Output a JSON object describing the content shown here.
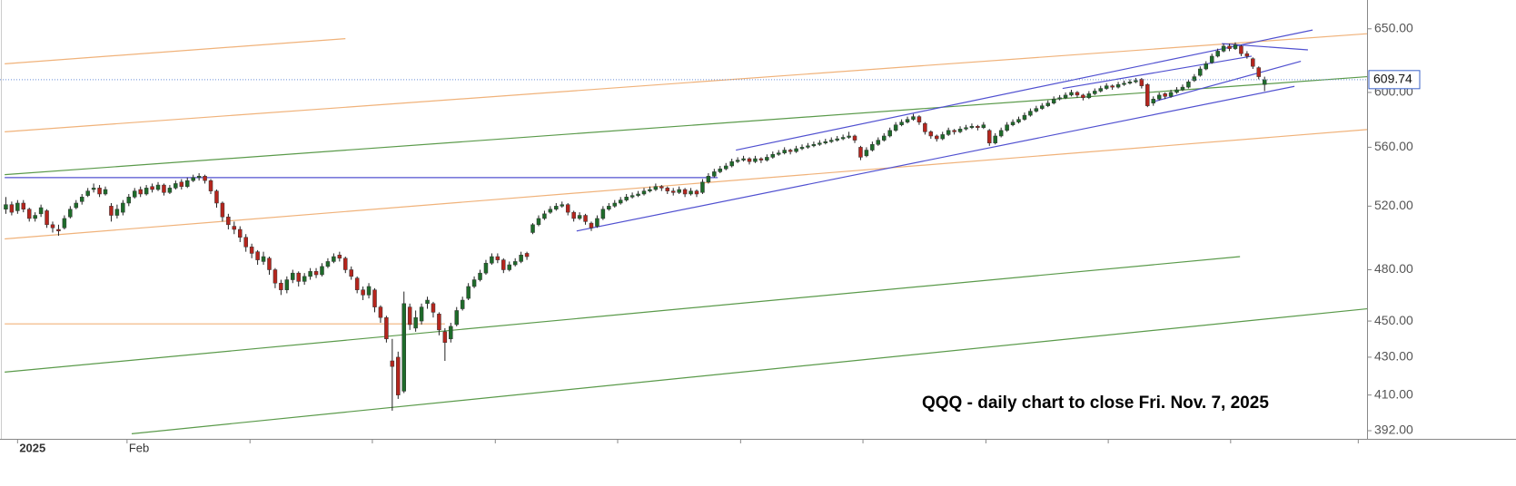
{
  "chart_data": {
    "type": "candlestick",
    "annotation": "QQQ - daily chart to close Fri. Nov. 7, 2025",
    "log_scale": true,
    "up_color": "#1e6b2a",
    "down_color": "#b5251d",
    "ylim": [
      388,
      674
    ],
    "yticks": [
      {
        "value": 392,
        "label": "392.00"
      },
      {
        "value": 410,
        "label": "410.00"
      },
      {
        "value": 430,
        "label": "430.00"
      },
      {
        "value": 450,
        "label": "450.00"
      },
      {
        "value": 480,
        "label": "480.00"
      },
      {
        "value": 520,
        "label": "520.00"
      },
      {
        "value": 560,
        "label": "560.00"
      },
      {
        "value": 600,
        "label": "600.00"
      },
      {
        "value": 650,
        "label": "650.00"
      }
    ],
    "xlim": [
      -1,
      232.5
    ],
    "xticks": [
      {
        "value": 2,
        "label": "2025"
      },
      {
        "value": 20.7,
        "label": "Feb"
      },
      {
        "value": 41.7,
        "label": null
      },
      {
        "value": 62.6,
        "label": null
      },
      {
        "value": 83.6,
        "label": null
      },
      {
        "value": 104.5,
        "label": null
      },
      {
        "value": 125.5,
        "label": null
      },
      {
        "value": 146.4,
        "label": null
      },
      {
        "value": 167.4,
        "label": null
      },
      {
        "value": 188.3,
        "label": null
      },
      {
        "value": 209.2,
        "label": null
      },
      {
        "value": 231,
        "label": null
      }
    ],
    "candles": [
      [
        518,
        526,
        515,
        521
      ],
      [
        521,
        523,
        514,
        516
      ],
      [
        517,
        524,
        515,
        522
      ],
      [
        522,
        524,
        516,
        518
      ],
      [
        518,
        519,
        510,
        512
      ],
      [
        512,
        516,
        510,
        514
      ],
      [
        515,
        521,
        513,
        519
      ],
      [
        517,
        518,
        506,
        508
      ],
      [
        508,
        510,
        503,
        506
      ],
      [
        505,
        508,
        501,
        504
      ],
      [
        506,
        514,
        505,
        512
      ],
      [
        513,
        520,
        512,
        518
      ],
      [
        519,
        524,
        518,
        522
      ],
      [
        523,
        528,
        521,
        526
      ],
      [
        527,
        532,
        526,
        530
      ],
      [
        531,
        535,
        529,
        532
      ],
      [
        532,
        534,
        526,
        528
      ],
      [
        528,
        533,
        527,
        531
      ],
      [
        520,
        522,
        510,
        514
      ],
      [
        514,
        521,
        512,
        518
      ],
      [
        516,
        524,
        514,
        522
      ],
      [
        522,
        528,
        520,
        526
      ],
      [
        526,
        532,
        525,
        530
      ],
      [
        531,
        533,
        526,
        528
      ],
      [
        528,
        534,
        527,
        532
      ],
      [
        533,
        535,
        529,
        531
      ],
      [
        531,
        536,
        530,
        534
      ],
      [
        534,
        535,
        527,
        529
      ],
      [
        529,
        534,
        528,
        532
      ],
      [
        532,
        537,
        531,
        535
      ],
      [
        536,
        538,
        531,
        533
      ],
      [
        533,
        539,
        532,
        537
      ],
      [
        537,
        541,
        536,
        539
      ],
      [
        539,
        542,
        537,
        540
      ],
      [
        540,
        541,
        535,
        537
      ],
      [
        537,
        538,
        528,
        530
      ],
      [
        530,
        531,
        519,
        522
      ],
      [
        522,
        523,
        510,
        513
      ],
      [
        513,
        515,
        505,
        508
      ],
      [
        507,
        510,
        502,
        505
      ],
      [
        505,
        507,
        497,
        500
      ],
      [
        500,
        502,
        491,
        494
      ],
      [
        494,
        496,
        487,
        490
      ],
      [
        491,
        492,
        483,
        486
      ],
      [
        485,
        491,
        483,
        488
      ],
      [
        487,
        488,
        477,
        480
      ],
      [
        480,
        481,
        469,
        472
      ],
      [
        472,
        474,
        465,
        468
      ],
      [
        468,
        476,
        466,
        474
      ],
      [
        474,
        480,
        472,
        478
      ],
      [
        478,
        479,
        470,
        473
      ],
      [
        473,
        478,
        471,
        476
      ],
      [
        476,
        481,
        474,
        479
      ],
      [
        479,
        481,
        475,
        477
      ],
      [
        477,
        484,
        476,
        482
      ],
      [
        482,
        487,
        481,
        485
      ],
      [
        485,
        490,
        484,
        488
      ],
      [
        489,
        491,
        485,
        487
      ],
      [
        487,
        488,
        478,
        480
      ],
      [
        480,
        482,
        474,
        476
      ],
      [
        475,
        476,
        466,
        468
      ],
      [
        468,
        470,
        462,
        465
      ],
      [
        465,
        472,
        463,
        470
      ],
      [
        468,
        469,
        455,
        458
      ],
      [
        458,
        459,
        449,
        452
      ],
      [
        452,
        453,
        438,
        440
      ],
      [
        428,
        440,
        402,
        425
      ],
      [
        430,
        433,
        408,
        410
      ],
      [
        412,
        467,
        411,
        460
      ],
      [
        458,
        460,
        445,
        448
      ],
      [
        446,
        456,
        444,
        452
      ],
      [
        450,
        460,
        448,
        458
      ],
      [
        460,
        464,
        457,
        462
      ],
      [
        460,
        461,
        452,
        455
      ],
      [
        454,
        455,
        442,
        445
      ],
      [
        444,
        446,
        428,
        438
      ],
      [
        440,
        449,
        438,
        447
      ],
      [
        448,
        458,
        447,
        456
      ],
      [
        457,
        464,
        456,
        462
      ],
      [
        463,
        472,
        462,
        470
      ],
      [
        470,
        476,
        469,
        474
      ],
      [
        474,
        480,
        473,
        478
      ],
      [
        478,
        486,
        477,
        484
      ],
      [
        484,
        490,
        483,
        488
      ],
      [
        488,
        490,
        484,
        486
      ],
      [
        486,
        487,
        478,
        480
      ],
      [
        480,
        485,
        479,
        483
      ],
      [
        483,
        487,
        482,
        485
      ],
      [
        485,
        491,
        484,
        489
      ],
      [
        490,
        491,
        486,
        488
      ],
      [
        503,
        509,
        502,
        508
      ],
      [
        508,
        514,
        507,
        512
      ],
      [
        512,
        517,
        511,
        515
      ],
      [
        516,
        520,
        515,
        518
      ],
      [
        518,
        522,
        517,
        520
      ],
      [
        520,
        523,
        519,
        521
      ],
      [
        521,
        522,
        514,
        516
      ],
      [
        516,
        517,
        510,
        512
      ],
      [
        512,
        516,
        511,
        514
      ],
      [
        514,
        515,
        508,
        510
      ],
      [
        509,
        510,
        504,
        506
      ],
      [
        507,
        514,
        506,
        512
      ],
      [
        512,
        520,
        511,
        518
      ],
      [
        518,
        522,
        517,
        520
      ],
      [
        520,
        524,
        519,
        522
      ],
      [
        522,
        526,
        521,
        524
      ],
      [
        524,
        528,
        523,
        526
      ],
      [
        526,
        529,
        525,
        527
      ],
      [
        527,
        530,
        526,
        528
      ],
      [
        528,
        532,
        527,
        530
      ],
      [
        530,
        533,
        529,
        531
      ],
      [
        531,
        535,
        530,
        533
      ],
      [
        533,
        534,
        530,
        532
      ],
      [
        532,
        533,
        528,
        530
      ],
      [
        530,
        532,
        527,
        529
      ],
      [
        529,
        533,
        528,
        531
      ],
      [
        531,
        532,
        526,
        528
      ],
      [
        528,
        532,
        527,
        530
      ],
      [
        530,
        531,
        526,
        528
      ],
      [
        529,
        538,
        528,
        536
      ],
      [
        536,
        542,
        535,
        540
      ],
      [
        540,
        545,
        539,
        543
      ],
      [
        543,
        547,
        542,
        545
      ],
      [
        545,
        549,
        544,
        547
      ],
      [
        547,
        552,
        546,
        550
      ],
      [
        550,
        553,
        549,
        551
      ],
      [
        551,
        554,
        550,
        552
      ],
      [
        552,
        553,
        548,
        550
      ],
      [
        550,
        554,
        549,
        552
      ],
      [
        552,
        553,
        549,
        551
      ],
      [
        551,
        555,
        550,
        553
      ],
      [
        553,
        557,
        552,
        555
      ],
      [
        555,
        558,
        554,
        556
      ],
      [
        556,
        560,
        555,
        558
      ],
      [
        558,
        559,
        555,
        557
      ],
      [
        557,
        561,
        556,
        559
      ],
      [
        559,
        562,
        558,
        560
      ],
      [
        560,
        563,
        559,
        561
      ],
      [
        561,
        564,
        560,
        562
      ],
      [
        562,
        565,
        561,
        563
      ],
      [
        563,
        566,
        562,
        564
      ],
      [
        564,
        567,
        563,
        565
      ],
      [
        565,
        568,
        564,
        566
      ],
      [
        566,
        569,
        565,
        567
      ],
      [
        567,
        571,
        566,
        568
      ],
      [
        568,
        569,
        563,
        565
      ],
      [
        560,
        561,
        551,
        553
      ],
      [
        554,
        560,
        553,
        558
      ],
      [
        558,
        564,
        557,
        562
      ],
      [
        562,
        567,
        561,
        565
      ],
      [
        565,
        570,
        564,
        568
      ],
      [
        568,
        574,
        567,
        572
      ],
      [
        572,
        578,
        571,
        576
      ],
      [
        576,
        580,
        575,
        578
      ],
      [
        578,
        582,
        577,
        580
      ],
      [
        580,
        584,
        579,
        582
      ],
      [
        582,
        583,
        576,
        578
      ],
      [
        577,
        578,
        569,
        571
      ],
      [
        571,
        572,
        566,
        568
      ],
      [
        568,
        569,
        564,
        566
      ],
      [
        566,
        571,
        565,
        569
      ],
      [
        569,
        574,
        568,
        572
      ],
      [
        572,
        573,
        569,
        571
      ],
      [
        571,
        575,
        570,
        573
      ],
      [
        573,
        576,
        572,
        574
      ],
      [
        574,
        577,
        573,
        575
      ],
      [
        575,
        576,
        572,
        574
      ],
      [
        574,
        578,
        573,
        576
      ],
      [
        572,
        573,
        561,
        563
      ],
      [
        563,
        570,
        562,
        568
      ],
      [
        568,
        574,
        567,
        572
      ],
      [
        572,
        578,
        571,
        576
      ],
      [
        576,
        580,
        575,
        578
      ],
      [
        578,
        582,
        577,
        580
      ],
      [
        580,
        585,
        579,
        583
      ],
      [
        583,
        588,
        582,
        586
      ],
      [
        586,
        590,
        585,
        588
      ],
      [
        588,
        592,
        587,
        590
      ],
      [
        590,
        594,
        589,
        592
      ],
      [
        592,
        597,
        591,
        595
      ],
      [
        595,
        598,
        594,
        596
      ],
      [
        596,
        600,
        595,
        598
      ],
      [
        598,
        602,
        597,
        600
      ],
      [
        600,
        601,
        596,
        598
      ],
      [
        598,
        599,
        594,
        596
      ],
      [
        596,
        601,
        595,
        599
      ],
      [
        599,
        603,
        598,
        601
      ],
      [
        601,
        605,
        600,
        603
      ],
      [
        603,
        607,
        602,
        605
      ],
      [
        605,
        606,
        602,
        604
      ],
      [
        604,
        608,
        603,
        606
      ],
      [
        606,
        609,
        605,
        607
      ],
      [
        607,
        610,
        606,
        608
      ],
      [
        608,
        611,
        607,
        609
      ],
      [
        610,
        611,
        603,
        605
      ],
      [
        606,
        607,
        589,
        590
      ],
      [
        592,
        597,
        590,
        595
      ],
      [
        595,
        600,
        594,
        598
      ],
      [
        599,
        600,
        595,
        597
      ],
      [
        597,
        602,
        596,
        600
      ],
      [
        600,
        604,
        599,
        602
      ],
      [
        602,
        606,
        601,
        604
      ],
      [
        604,
        610,
        603,
        608
      ],
      [
        609,
        614,
        608,
        612
      ],
      [
        613,
        620,
        612,
        618
      ],
      [
        618,
        624,
        617,
        622
      ],
      [
        623,
        630,
        622,
        628
      ],
      [
        628,
        634,
        627,
        632
      ],
      [
        632,
        638,
        631,
        636
      ],
      [
        636,
        638,
        632,
        634
      ],
      [
        634,
        639,
        633,
        637
      ],
      [
        636,
        637,
        628,
        630
      ],
      [
        630,
        632,
        626,
        628
      ],
      [
        626,
        627,
        618,
        620
      ],
      [
        619,
        620,
        610,
        612
      ],
      [
        606,
        612,
        601,
        609.74
      ]
    ],
    "lines": [
      {
        "x": [
          -0.2,
          58
        ],
        "y": [
          622,
          642
        ],
        "color": "#f0b27a"
      },
      {
        "x": [
          -0.2,
          232.5
        ],
        "y": [
          571,
          646
        ],
        "color": "#f0b27a"
      },
      {
        "x": [
          -0.2,
          232.5
        ],
        "y": [
          499,
          572.6
        ],
        "color": "#f0b27a"
      },
      {
        "x": [
          -0.2,
          75
        ],
        "y": [
          448.4,
          448.4
        ],
        "color": "#f0b27a"
      },
      {
        "x": [
          -0.2,
          232.5
        ],
        "y": [
          541,
          612
        ],
        "color": "#5a9a4a"
      },
      {
        "x": [
          -0.2,
          210.8
        ],
        "y": [
          422,
          488
        ],
        "color": "#5a9a4a"
      },
      {
        "x": [
          21.5,
          232.5
        ],
        "y": [
          390.5,
          457
        ],
        "color": "#5a9a4a"
      },
      {
        "x": [
          -0.2,
          121.6
        ],
        "y": [
          539,
          539
        ],
        "color": "#5050d0"
      },
      {
        "x": [
          97.5,
          220.1
        ],
        "y": [
          504,
          604.6
        ],
        "color": "#5050d0"
      },
      {
        "x": [
          124.7,
          223.2
        ],
        "y": [
          558,
          649
        ],
        "color": "#5050d0"
      },
      {
        "x": [
          196,
          221.2
        ],
        "y": [
          593,
          624
        ],
        "color": "#5050d0"
      },
      {
        "x": [
          207.7,
          222.4
        ],
        "y": [
          638,
          633
        ],
        "color": "#5050d0"
      },
      {
        "x": [
          180.5,
          212.8
        ],
        "y": [
          603,
          628
        ],
        "color": "#5050d0"
      }
    ]
  }
}
